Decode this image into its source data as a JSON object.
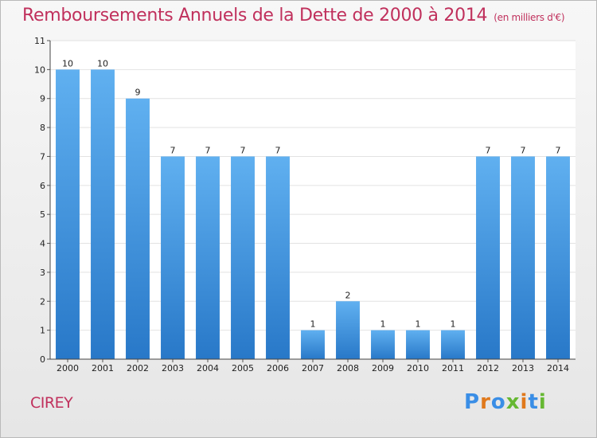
{
  "title": "Remboursements Annuels de la Dette de 2000 à 2014",
  "unit": "(en milliers d'€)",
  "commune": "CIREY",
  "logo": {
    "letters": [
      "P",
      "r",
      "o",
      "x",
      "i",
      "t",
      "i"
    ],
    "colors": [
      "#3a8ee6",
      "#e0791c",
      "#3a8ee6",
      "#66b832",
      "#e0791c",
      "#3a8ee6",
      "#66b832"
    ]
  },
  "colors": {
    "bar_light": "#60b0f0",
    "bar_dark": "#2878c8",
    "title": "#c0305c"
  },
  "chart_data": {
    "type": "bar",
    "categories": [
      "2000",
      "2001",
      "2002",
      "2003",
      "2004",
      "2005",
      "2006",
      "2007",
      "2008",
      "2009",
      "2010",
      "2011",
      "2012",
      "2013",
      "2014"
    ],
    "values": [
      10,
      10,
      9,
      7,
      7,
      7,
      7,
      1,
      2,
      1,
      1,
      1,
      7,
      7,
      7
    ],
    "data_labels": [
      "10",
      "10",
      "9",
      "7",
      "7",
      "7",
      "7",
      "1",
      "2",
      "1",
      "1",
      "1",
      "7",
      "7",
      "7"
    ],
    "y_ticks": [
      "0",
      "1",
      "2",
      "3",
      "4",
      "5",
      "6",
      "7",
      "8",
      "9",
      "10",
      "11"
    ],
    "ylim": [
      0,
      11
    ],
    "grid": true
  }
}
